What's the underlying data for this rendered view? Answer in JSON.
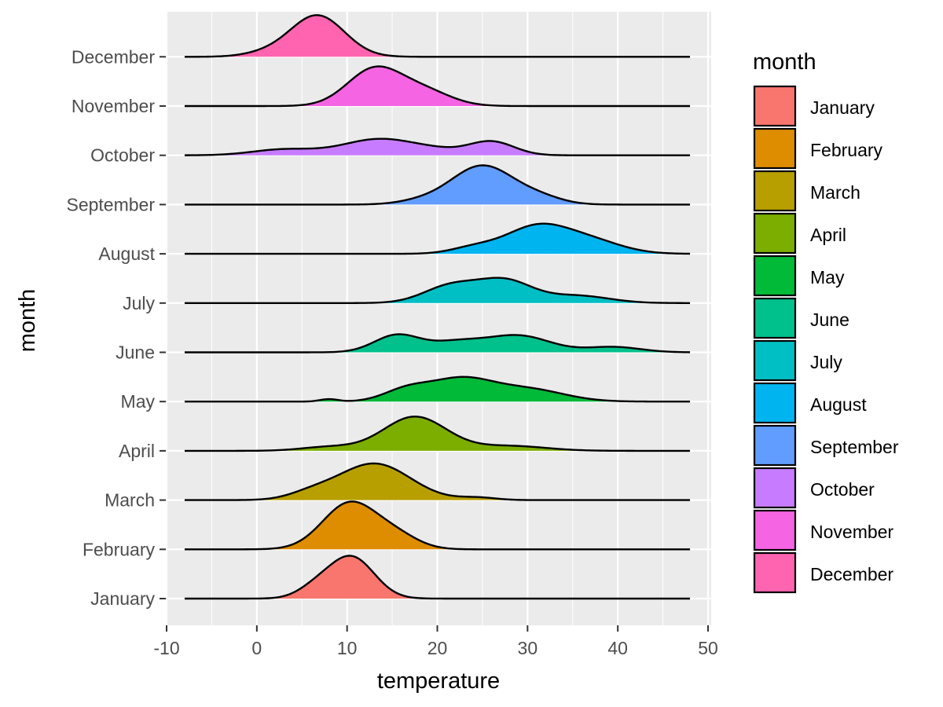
{
  "chart_data": {
    "type": "ridgeline",
    "title": "",
    "xlabel": "temperature",
    "ylabel": "month",
    "xlim": [
      -10,
      50
    ],
    "x_ticks": [
      -10,
      0,
      10,
      20,
      30,
      40,
      50
    ],
    "x_tick_labels": [
      "-10",
      "0",
      "10",
      "20",
      "30",
      "40",
      "50"
    ],
    "density_range": [
      -8,
      48
    ],
    "grid": true,
    "legend": {
      "title": "month",
      "position": "right"
    },
    "series": [
      {
        "name": "January",
        "color": "#F8766D",
        "peaks": [
          {
            "x": 10.5,
            "sd": 2.5,
            "h": 0.85
          },
          {
            "x": 6.5,
            "sd": 2.0,
            "h": 0.2
          }
        ]
      },
      {
        "name": "February",
        "color": "#DE8C00",
        "peaks": [
          {
            "x": 10.3,
            "sd": 3.0,
            "h": 0.95
          },
          {
            "x": 15.5,
            "sd": 2.5,
            "h": 0.25
          }
        ]
      },
      {
        "name": "March",
        "color": "#B79F00",
        "peaks": [
          {
            "x": 13.0,
            "sd": 4.0,
            "h": 0.75
          },
          {
            "x": 6.0,
            "sd": 2.5,
            "h": 0.12
          },
          {
            "x": 24.5,
            "sd": 2.0,
            "h": 0.05
          }
        ]
      },
      {
        "name": "April",
        "color": "#7CAE00",
        "peaks": [
          {
            "x": 17.5,
            "sd": 3.5,
            "h": 0.7
          },
          {
            "x": 8.0,
            "sd": 3.0,
            "h": 0.08
          },
          {
            "x": 28.0,
            "sd": 4.0,
            "h": 0.1
          }
        ]
      },
      {
        "name": "May",
        "color": "#00BA38",
        "peaks": [
          {
            "x": 22.5,
            "sd": 3.5,
            "h": 0.45
          },
          {
            "x": 16.5,
            "sd": 2.5,
            "h": 0.22
          },
          {
            "x": 30.0,
            "sd": 4.0,
            "h": 0.25
          },
          {
            "x": 8.0,
            "sd": 1.0,
            "h": 0.05
          }
        ]
      },
      {
        "name": "June",
        "color": "#00C08B",
        "peaks": [
          {
            "x": 15.5,
            "sd": 2.5,
            "h": 0.35
          },
          {
            "x": 22.0,
            "sd": 3.0,
            "h": 0.2
          },
          {
            "x": 29.0,
            "sd": 3.5,
            "h": 0.34
          },
          {
            "x": 39.5,
            "sd": 3.0,
            "h": 0.11
          }
        ]
      },
      {
        "name": "July",
        "color": "#00BFC4",
        "peaks": [
          {
            "x": 21.5,
            "sd": 3.0,
            "h": 0.35
          },
          {
            "x": 27.5,
            "sd": 3.0,
            "h": 0.45
          },
          {
            "x": 35.5,
            "sd": 3.5,
            "h": 0.15
          }
        ]
      },
      {
        "name": "August",
        "color": "#00B4F0",
        "peaks": [
          {
            "x": 31.0,
            "sd": 3.5,
            "h": 0.55
          },
          {
            "x": 37.0,
            "sd": 3.5,
            "h": 0.25
          },
          {
            "x": 24.0,
            "sd": 2.5,
            "h": 0.12
          }
        ]
      },
      {
        "name": "September",
        "color": "#619CFF",
        "peaks": [
          {
            "x": 25.0,
            "sd": 3.5,
            "h": 0.8
          },
          {
            "x": 18.0,
            "sd": 2.5,
            "h": 0.06
          },
          {
            "x": 31.5,
            "sd": 2.5,
            "h": 0.12
          }
        ]
      },
      {
        "name": "October",
        "color": "#C77CFF",
        "peaks": [
          {
            "x": 13.5,
            "sd": 4.0,
            "h": 0.33
          },
          {
            "x": 26.0,
            "sd": 2.5,
            "h": 0.28
          },
          {
            "x": 3.0,
            "sd": 3.5,
            "h": 0.12
          },
          {
            "x": 20.0,
            "sd": 3.0,
            "h": 0.08
          }
        ]
      },
      {
        "name": "November",
        "color": "#F564E3",
        "peaks": [
          {
            "x": 13.0,
            "sd": 3.0,
            "h": 0.75
          },
          {
            "x": 18.5,
            "sd": 3.0,
            "h": 0.3
          }
        ]
      },
      {
        "name": "December",
        "color": "#FF64B0",
        "peaks": [
          {
            "x": 6.7,
            "sd": 3.0,
            "h": 0.85
          },
          {
            "x": 1.0,
            "sd": 2.5,
            "h": 0.07
          }
        ]
      }
    ]
  }
}
